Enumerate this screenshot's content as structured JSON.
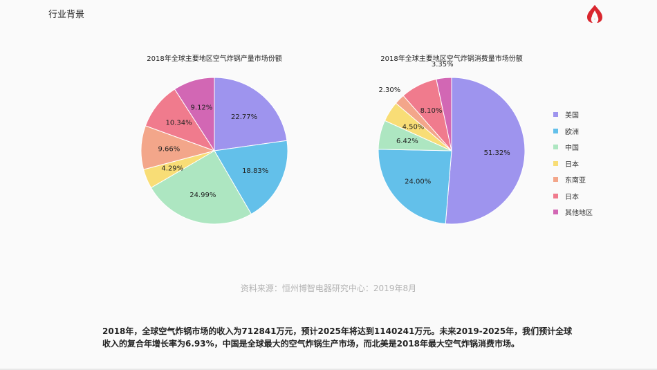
{
  "header": {
    "section_title": "行业背景",
    "logo_icon": "brand-flame-logo-icon"
  },
  "colors": {
    "美国": "#9e94ee",
    "欧洲": "#63c0ea",
    "中国": "#ade6c1",
    "日本_1": "#f8dd76",
    "东南亚": "#f3a68a",
    "日本_2": "#f07b8d",
    "其他地区": "#d267b4"
  },
  "chart_data": [
    {
      "type": "pie",
      "title": "2018年全球主要地区空气炸锅产量市场份额",
      "slices": [
        {
          "name": "美国",
          "value": 22.77,
          "label": "22.77%",
          "color": "#9e94ee"
        },
        {
          "name": "欧洲",
          "value": 18.83,
          "label": "18.83%",
          "color": "#63c0ea"
        },
        {
          "name": "中国",
          "value": 24.99,
          "label": "24.99%",
          "color": "#ade6c1"
        },
        {
          "name": "日本",
          "value": 4.29,
          "label": "4.29%",
          "color": "#f8dd76"
        },
        {
          "name": "东南亚",
          "value": 9.66,
          "label": "9.66%",
          "color": "#f3a68a"
        },
        {
          "name": "日本",
          "value": 10.34,
          "label": "10.34%",
          "color": "#f07b8d"
        },
        {
          "name": "其他地区",
          "value": 9.12,
          "label": "9.12%",
          "color": "#d267b4"
        }
      ]
    },
    {
      "type": "pie",
      "title": "2018年全球主要地区空气炸锅消费量市场份额",
      "slices": [
        {
          "name": "美国",
          "value": 51.32,
          "label": "51.32%",
          "color": "#9e94ee"
        },
        {
          "name": "欧洲",
          "value": 24.0,
          "label": "24.00%",
          "color": "#63c0ea"
        },
        {
          "name": "中国",
          "value": 6.42,
          "label": "6.42%",
          "color": "#ade6c1"
        },
        {
          "name": "日本",
          "value": 4.5,
          "label": "4.50%",
          "color": "#f8dd76"
        },
        {
          "name": "东南亚",
          "value": 2.3,
          "label": "2.30%",
          "color": "#f3a68a"
        },
        {
          "name": "日本",
          "value": 8.1,
          "label": "8.10%",
          "color": "#f07b8d"
        },
        {
          "name": "其他地区",
          "value": 3.35,
          "label": "3.35%",
          "color": "#d267b4"
        }
      ],
      "legend_placement": "right"
    }
  ],
  "legend": [
    {
      "label": "美国",
      "color": "#9e94ee"
    },
    {
      "label": "欧洲",
      "color": "#63c0ea"
    },
    {
      "label": "中国",
      "color": "#ade6c1"
    },
    {
      "label": "日本",
      "color": "#f8dd76"
    },
    {
      "label": "东南亚",
      "color": "#f3a68a"
    },
    {
      "label": "日本",
      "color": "#f07b8d"
    },
    {
      "label": "其他地区",
      "color": "#d267b4"
    }
  ],
  "source": "资料来源：恒州博智电器研究中心：2019年8月",
  "summary": "2018年，全球空气炸锅市场的收入为712841万元，预计2025年将达到1140241万元。未来2019-2025年，我们预计全球收入的复合年增长率为6.93%，中国是全球最大的空气炸锅生产市场，而北美是2018年最大空气炸锅消费市场。"
}
